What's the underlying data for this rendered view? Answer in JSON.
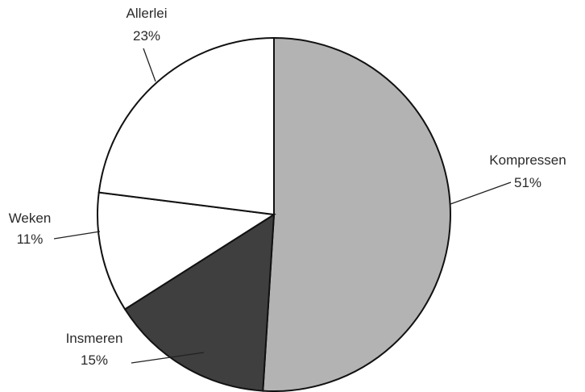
{
  "chart_data": {
    "type": "pie",
    "title": "",
    "slices": [
      {
        "label": "Kompressen",
        "value": 51,
        "value_label": "51%",
        "color": "#b3b3b3"
      },
      {
        "label": "Insmeren",
        "value": 15,
        "value_label": "15%",
        "color": "#3f3f3f"
      },
      {
        "label": "Weken",
        "value": 11,
        "value_label": "11%",
        "color": "#ffffff"
      },
      {
        "label": "Allerlei",
        "value": 23,
        "value_label": "23%",
        "color": "#ffffff"
      }
    ],
    "legend": "none"
  }
}
